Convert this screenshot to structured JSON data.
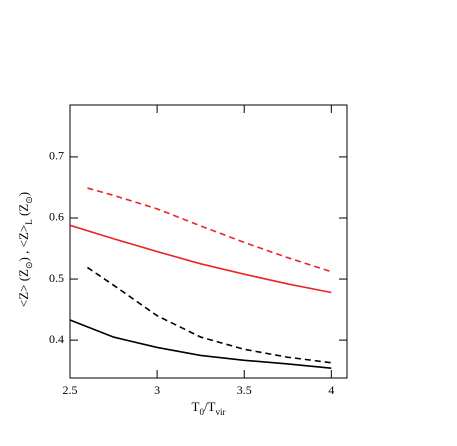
{
  "chart_data": {
    "type": "line",
    "x_label": [
      "T",
      "0",
      "/T",
      "vir"
    ],
    "y_label": [
      "<Z>  (Z",
      "⊙",
      ")     ,     <Z>",
      "L",
      "  (Z",
      "⊙",
      ")"
    ],
    "xlim": [
      2.5,
      4.09
    ],
    "ylim": [
      0.338,
      0.785
    ],
    "xticks": [
      2.5,
      3,
      3.5,
      4
    ],
    "yticks": [
      0.4,
      0.5,
      0.6,
      0.7
    ],
    "series": [
      {
        "color": "#e8262a",
        "dashed": false,
        "x": [
          2.5,
          2.75,
          3,
          3.25,
          3.5,
          3.75,
          4
        ],
        "values": [
          0.588,
          0.566,
          0.545,
          0.525,
          0.508,
          0.492,
          0.478
        ]
      },
      {
        "color": "#e8262a",
        "dashed": true,
        "x": [
          2.6,
          2.75,
          3,
          3.25,
          3.5,
          3.75,
          4
        ],
        "values": [
          0.649,
          0.637,
          0.615,
          0.587,
          0.56,
          0.535,
          0.512
        ]
      },
      {
        "color": "#000000",
        "dashed": true,
        "x": [
          2.6,
          2.75,
          3,
          3.25,
          3.5,
          3.75,
          4
        ],
        "values": [
          0.519,
          0.49,
          0.44,
          0.405,
          0.385,
          0.372,
          0.363
        ]
      },
      {
        "color": "#000000",
        "dashed": false,
        "x": [
          2.5,
          2.75,
          3,
          3.25,
          3.5,
          3.75,
          4
        ],
        "values": [
          0.433,
          0.405,
          0.388,
          0.375,
          0.367,
          0.361,
          0.354
        ]
      }
    ]
  }
}
